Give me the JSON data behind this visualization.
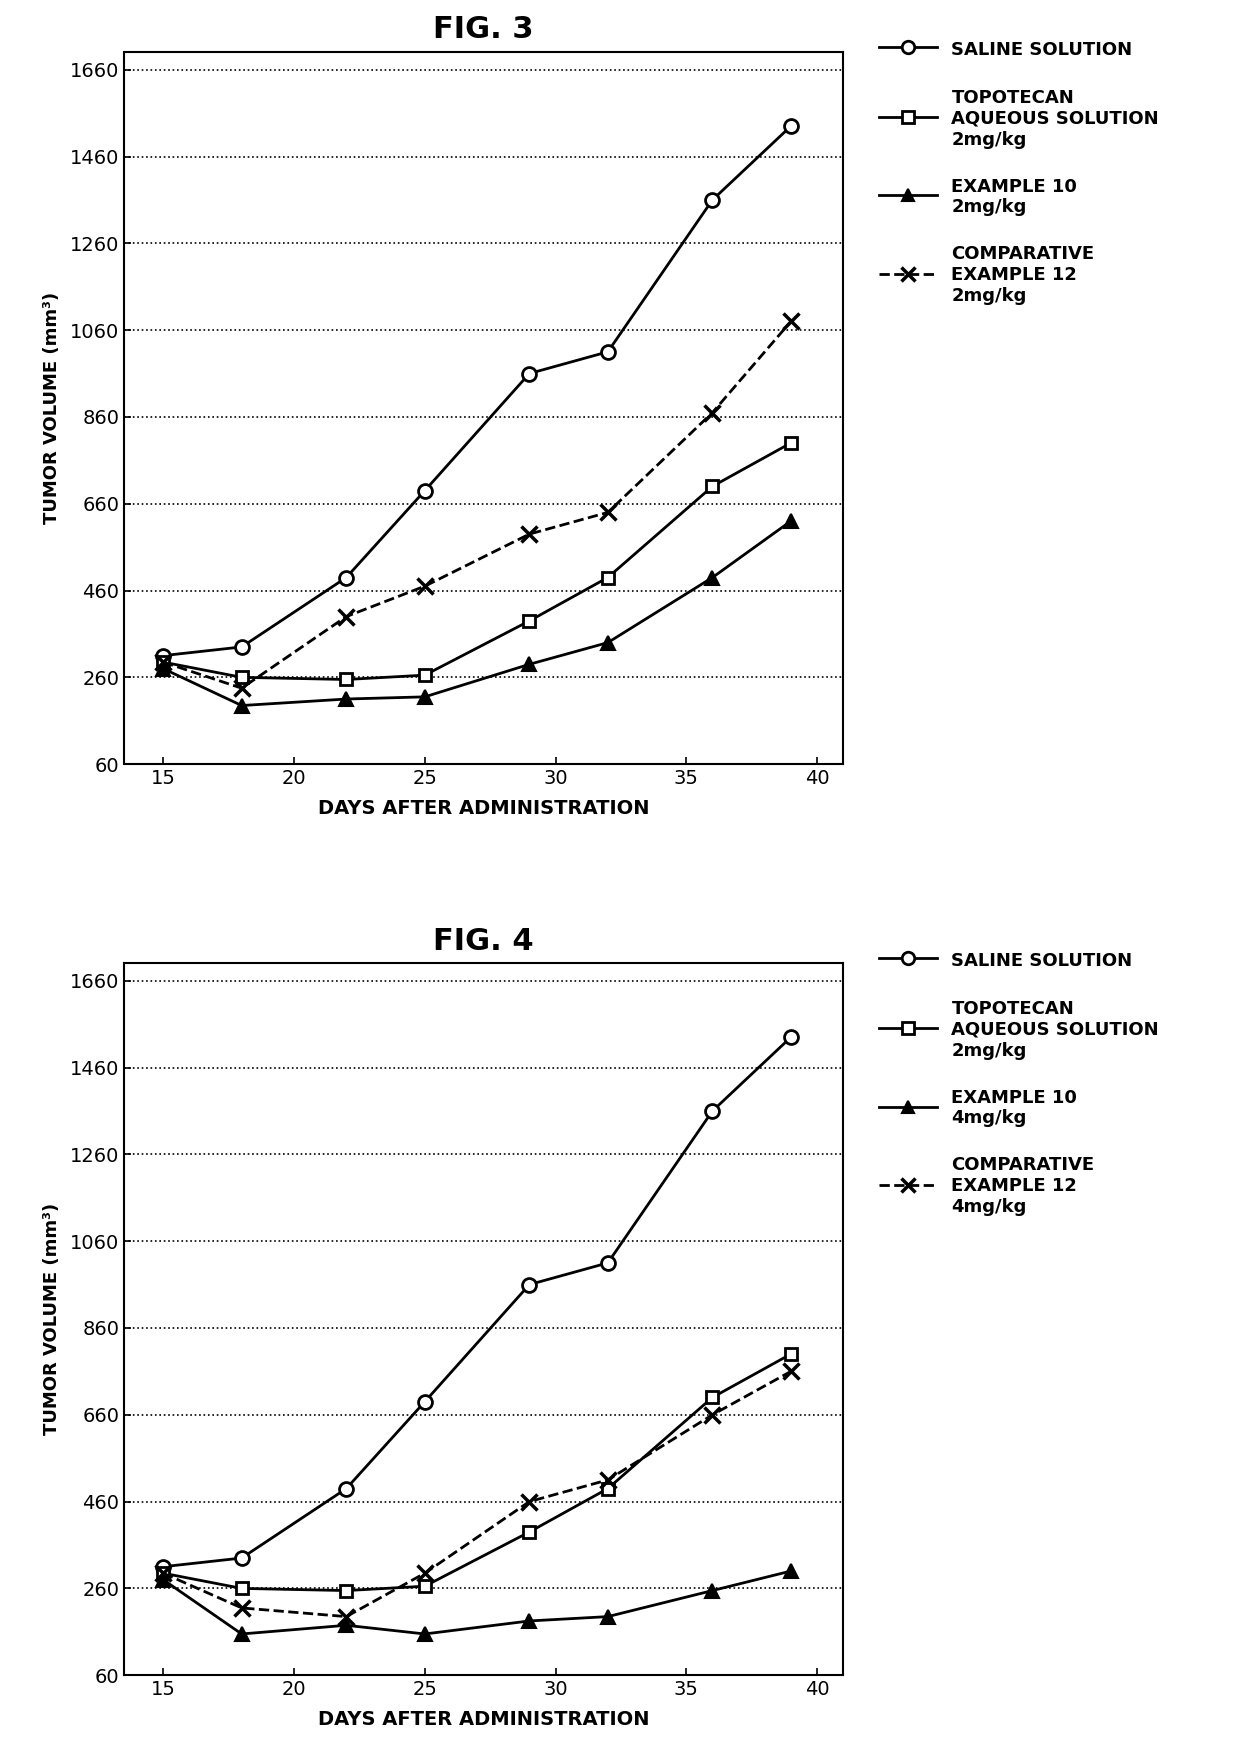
{
  "fig3": {
    "title": "FIG. 3",
    "saline": {
      "x": [
        15,
        18,
        22,
        25,
        29,
        32,
        36,
        39
      ],
      "y": [
        310,
        330,
        490,
        690,
        960,
        1010,
        1360,
        1530
      ]
    },
    "topotecan": {
      "x": [
        15,
        18,
        22,
        25,
        29,
        32,
        36,
        39
      ],
      "y": [
        295,
        260,
        255,
        265,
        390,
        490,
        700,
        800
      ]
    },
    "example10": {
      "x": [
        15,
        18,
        22,
        25,
        29,
        32,
        36,
        39
      ],
      "y": [
        280,
        195,
        210,
        215,
        290,
        340,
        490,
        620
      ]
    },
    "comp12": {
      "x": [
        15,
        18,
        22,
        25,
        29,
        32,
        36,
        39
      ],
      "y": [
        295,
        235,
        400,
        470,
        590,
        640,
        870,
        1080
      ]
    },
    "legend": [
      "SALINE SOLUTION",
      "TOPOTECAN\nAQUEOUS SOLUTION\n2mg/kg",
      "EXAMPLE 10\n2mg/kg",
      "COMPARATIVE\nEXAMPLE 12\n2mg/kg"
    ]
  },
  "fig4": {
    "title": "FIG. 4",
    "saline": {
      "x": [
        15,
        18,
        22,
        25,
        29,
        32,
        36,
        39
      ],
      "y": [
        310,
        330,
        490,
        690,
        960,
        1010,
        1360,
        1530
      ]
    },
    "topotecan": {
      "x": [
        15,
        18,
        22,
        25,
        29,
        32,
        36,
        39
      ],
      "y": [
        295,
        260,
        255,
        265,
        390,
        490,
        700,
        800
      ]
    },
    "example10": {
      "x": [
        15,
        18,
        22,
        25,
        29,
        32,
        36,
        39
      ],
      "y": [
        280,
        155,
        175,
        155,
        185,
        195,
        255,
        300
      ]
    },
    "comp12": {
      "x": [
        15,
        18,
        22,
        25,
        29,
        32,
        36,
        39
      ],
      "y": [
        295,
        215,
        195,
        295,
        460,
        510,
        660,
        760
      ]
    },
    "legend": [
      "SALINE SOLUTION",
      "TOPOTECAN\nAQUEOUS SOLUTION\n2mg/kg",
      "EXAMPLE 10\n4mg/kg",
      "COMPARATIVE\nEXAMPLE 12\n4mg/kg"
    ]
  },
  "xlabel": "DAYS AFTER ADMINISTRATION",
  "ylabel": "TUMOR VOLUME (mm³)",
  "yticks": [
    60,
    260,
    460,
    660,
    860,
    1060,
    1260,
    1460,
    1660
  ],
  "xticks": [
    15,
    20,
    25,
    30,
    35,
    40
  ],
  "xlim": [
    13.5,
    41
  ],
  "ylim": [
    60,
    1700
  ]
}
